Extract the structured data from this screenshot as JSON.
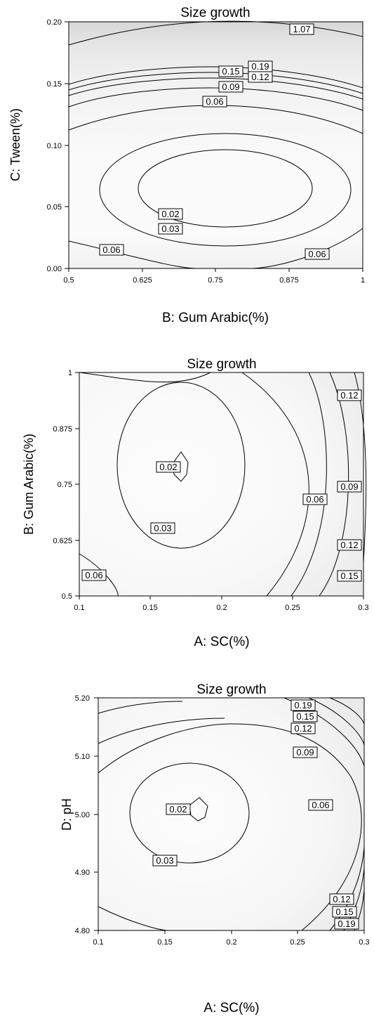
{
  "chart_data": [
    {
      "type": "contour",
      "title": "Size growth",
      "xlabel": "B: Gum Arabic(%)",
      "ylabel": "C: Tween(%)",
      "xlim": [
        0.5,
        1
      ],
      "ylim": [
        0,
        0.2
      ],
      "xticks": [
        "0.5",
        "0.625",
        "0.75",
        "0.875",
        "1"
      ],
      "yticks": [
        "0.00",
        "0.05",
        "0.10",
        "0.15",
        "0.20"
      ],
      "contour_labels": [
        "1.07",
        "0.19",
        "0.15",
        "0.12",
        "0.09",
        "0.06",
        "0.02",
        "0.03",
        "0.06",
        "0.06"
      ],
      "label_values": [
        1.07,
        0.19,
        0.15,
        0.12,
        0.09,
        0.06,
        0.02,
        0.03,
        0.06,
        0.06
      ]
    },
    {
      "type": "contour",
      "title": "Size growth",
      "xlabel": "A: SC(%)",
      "ylabel": "B: Gum Arabic(%)",
      "xlim": [
        0.1,
        0.3
      ],
      "ylim": [
        0.5,
        1
      ],
      "xticks": [
        "0.1",
        "0.15",
        "0.2",
        "0.25",
        "0.3"
      ],
      "yticks": [
        "0.5",
        "0.625",
        "0.75",
        "0.875",
        "1"
      ],
      "contour_labels": [
        "0.12",
        "0.02",
        "0.06",
        "0.09",
        "0.03",
        "0.12",
        "0.06",
        "0.15"
      ],
      "label_values": [
        0.12,
        0.02,
        0.06,
        0.09,
        0.03,
        0.12,
        0.06,
        0.15
      ]
    },
    {
      "type": "contour",
      "title": "Size growth",
      "xlabel": "A: SC(%)",
      "ylabel": "D: pH",
      "xlim": [
        0.1,
        0.3
      ],
      "ylim": [
        4.8,
        5.2
      ],
      "xticks": [
        "0.1",
        "0.15",
        "0.2",
        "0.25",
        "0.3"
      ],
      "yticks": [
        "4.80",
        "4.90",
        "5.00",
        "5.10",
        "5.20"
      ],
      "contour_labels": [
        "0.19",
        "0.15",
        "0.12",
        "0.09",
        "0.06",
        "0.02",
        "0.03",
        "0.12",
        "0.15",
        "0.19"
      ],
      "label_values": [
        0.19,
        0.15,
        0.12,
        0.09,
        0.06,
        0.02,
        0.03,
        0.12,
        0.15,
        0.19
      ]
    }
  ]
}
